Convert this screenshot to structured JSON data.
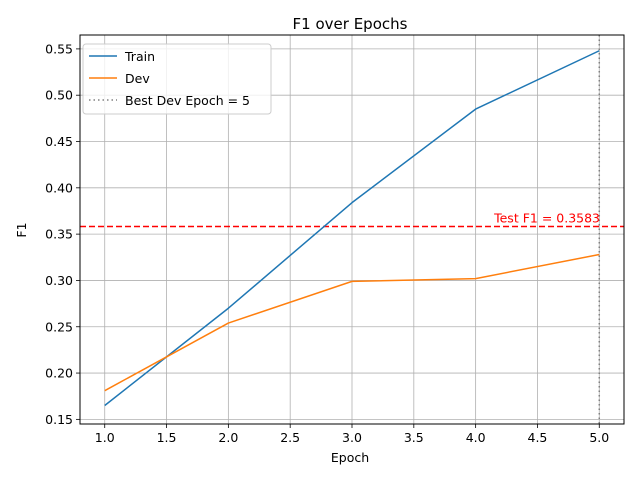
{
  "chart_data": {
    "type": "line",
    "title": "F1 over Epochs",
    "xlabel": "Epoch",
    "ylabel": "F1",
    "xlim": [
      0.8,
      5.2
    ],
    "ylim": [
      0.145,
      0.565
    ],
    "xticks": [
      "1.0",
      "1.5",
      "2.0",
      "2.5",
      "3.0",
      "3.5",
      "4.0",
      "4.5",
      "5.0"
    ],
    "yticks": [
      "0.15",
      "0.20",
      "0.25",
      "0.30",
      "0.35",
      "0.40",
      "0.45",
      "0.50",
      "0.55"
    ],
    "grid": true,
    "legend_position": "top-left",
    "x": [
      1,
      2,
      3,
      4,
      5
    ],
    "series": [
      {
        "name": "Train",
        "color": "#1f77b4",
        "values": [
          0.165,
          0.27,
          0.384,
          0.485,
          0.548
        ]
      },
      {
        "name": "Dev",
        "color": "#ff7f0e",
        "values": [
          0.181,
          0.254,
          0.299,
          0.302,
          0.328
        ]
      }
    ],
    "reference_lines": [
      {
        "orientation": "vertical",
        "value": 5,
        "style": "dotted",
        "color": "#808080",
        "name": "Best Dev Epoch = 5"
      },
      {
        "orientation": "horizontal",
        "value": 0.3583,
        "style": "dashed",
        "color": "#ff0000",
        "annotation": "Test F1 = 0.3583"
      }
    ]
  }
}
